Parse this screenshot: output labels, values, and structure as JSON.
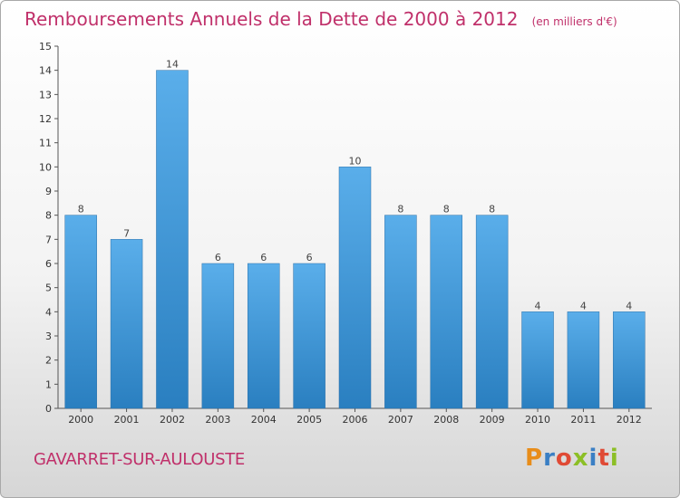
{
  "title": "Remboursements Annuels de la Dette de 2000 à 2012",
  "subtitle": "(en milliers d'€)",
  "place_name": "GAVARRET-SUR-AULOUSTE",
  "logo": {
    "text": "Proxiti",
    "letter_colors": [
      "#e88d1a",
      "#3a7fc4",
      "#e04a35",
      "#8cbf26",
      "#3a7fc4",
      "#e04a35",
      "#8cbf26"
    ]
  },
  "colors": {
    "title": "#c0306a",
    "bar_top": "#5aaeea",
    "bar_bottom": "#2a7fc0"
  },
  "chart_data": {
    "type": "bar",
    "title": "Remboursements Annuels de la Dette de 2000 à 2012",
    "subtitle": "(en milliers d'€)",
    "categories": [
      "2000",
      "2001",
      "2002",
      "2003",
      "2004",
      "2005",
      "2006",
      "2007",
      "2008",
      "2009",
      "2010",
      "2011",
      "2012"
    ],
    "values": [
      8,
      7,
      14,
      6,
      6,
      6,
      10,
      8,
      8,
      8,
      4,
      4,
      4
    ],
    "ylim": [
      0,
      15
    ],
    "yticks": [
      0,
      1,
      2,
      3,
      4,
      5,
      6,
      7,
      8,
      9,
      10,
      11,
      12,
      13,
      14,
      15
    ],
    "grid": false,
    "data_labels": true
  }
}
